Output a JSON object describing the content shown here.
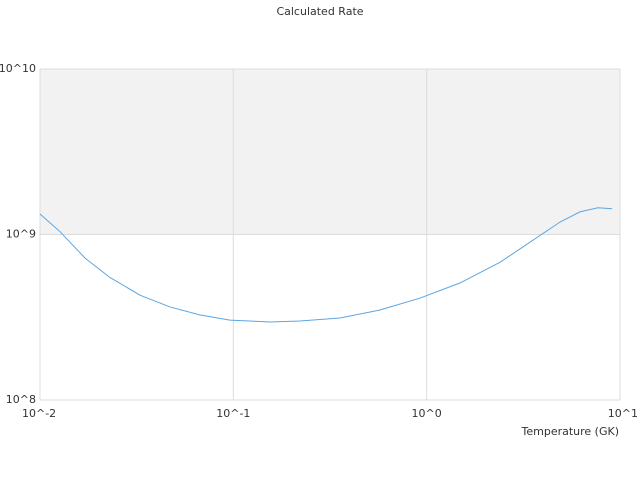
{
  "chart_data": {
    "type": "line",
    "title": "Calculated Rate",
    "x_label": "Temperature (GK)",
    "x_log": true,
    "y_log": true,
    "xlim": [
      0.01,
      10
    ],
    "ylim": [
      100000000,
      10000000000
    ],
    "xticks": [
      {
        "value": 0.01,
        "label": "10^-2"
      },
      {
        "value": 0.1,
        "label": "10^-1"
      },
      {
        "value": 1,
        "label": "10^0"
      },
      {
        "value": 10,
        "label": "10^1"
      }
    ],
    "yticks": [
      {
        "value": 100000000,
        "label": "10^8"
      },
      {
        "value": 1000000000,
        "label": "10^9"
      },
      {
        "value": 10000000000,
        "label": "10^10"
      }
    ],
    "grid": true,
    "band": [
      1000000000,
      10000000000
    ],
    "band_color": "#f2f2f2",
    "series": [
      {
        "color": "#5da5e0",
        "x": [
          0.01,
          0.0127,
          0.0171,
          0.023,
          0.0329,
          0.047,
          0.067,
          0.096,
          0.155,
          0.221,
          0.356,
          0.574,
          0.925,
          1.49,
          2.4,
          3.43,
          4.9,
          6.2,
          7.7,
          9.1
        ],
        "values": [
          1330000000,
          1040000000,
          720000000,
          550000000,
          430000000,
          365000000,
          327000000,
          304000000,
          296000000,
          300000000,
          313000000,
          350000000,
          413000000,
          510000000,
          680000000,
          900000000,
          1190000000,
          1370000000,
          1450000000,
          1430000000
        ]
      }
    ]
  }
}
